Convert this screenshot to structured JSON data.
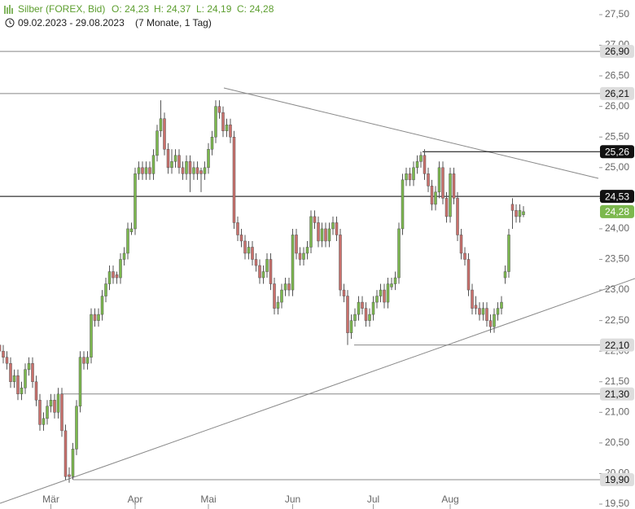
{
  "chart_data": {
    "type": "candlestick",
    "title": "Silber (FOREX, Bid)",
    "ohlc_labels": [
      "O: 24,23",
      "H: 24,37",
      "L: 24,19",
      "C: 24,28"
    ],
    "subtitle": "09.02.2023 - 29.08.2023",
    "period": "(7 Monate, 1 Tag)",
    "up_color": "#7cb84e",
    "down_color": "#c9706c",
    "ylim": [
      19.5,
      27.5
    ],
    "yticks": [
      {
        "value": 19.5,
        "label": "19,50"
      },
      {
        "value": 20,
        "label": "20,00"
      },
      {
        "value": 20.5,
        "label": "20,50"
      },
      {
        "value": 21,
        "label": "21,00"
      },
      {
        "value": 21.5,
        "label": "21,50"
      },
      {
        "value": 22,
        "label": "22,00"
      },
      {
        "value": 22.5,
        "label": "22,50"
      },
      {
        "value": 23,
        "label": "23,00"
      },
      {
        "value": 23.5,
        "label": "23,50"
      },
      {
        "value": 24,
        "label": "24,00"
      },
      {
        "value": 24.5,
        "label": "24,50"
      },
      {
        "value": 25,
        "label": "25,00"
      },
      {
        "value": 25.5,
        "label": "25,50"
      },
      {
        "value": 26,
        "label": "26,00"
      },
      {
        "value": 26.5,
        "label": "26,50"
      },
      {
        "value": 27,
        "label": "27,00"
      },
      {
        "value": 27.5,
        "label": "27,50"
      }
    ],
    "levels": [
      {
        "value": 26.9,
        "label": "26,90",
        "color": "#888888",
        "text_color": "#111111",
        "box": "#dddddd",
        "line": true
      },
      {
        "value": 26.21,
        "label": "26,21",
        "color": "#888888",
        "text_color": "#111111",
        "box": "#dddddd",
        "line": true
      },
      {
        "value": 25.26,
        "label": "25,26",
        "color": "#000000",
        "text_color": "#ffffff",
        "box": "#111111",
        "line": true
      },
      {
        "value": 24.53,
        "label": "24,53",
        "color": "#000000",
        "text_color": "#ffffff",
        "box": "#111111",
        "line": true
      },
      {
        "value": 24.28,
        "label": "24,28",
        "color": "#7cb84e",
        "text_color": "#ffffff",
        "box": "#7cb84e",
        "line": false
      },
      {
        "value": 22.1,
        "label": "22,10",
        "color": "#888888",
        "text_color": "#111111",
        "box": "#dddddd",
        "line": true
      },
      {
        "value": 21.3,
        "label": "21,30",
        "color": "#888888",
        "text_color": "#111111",
        "box": "#dddddd",
        "line": true
      },
      {
        "value": 19.9,
        "label": "19,90",
        "color": "#888888",
        "text_color": "#111111",
        "box": "#dddddd",
        "line": true
      }
    ],
    "categories": [
      null,
      null,
      null,
      null,
      null,
      null,
      null,
      null,
      null,
      null,
      null,
      null,
      null,
      null,
      "Mär",
      null,
      null,
      null,
      null,
      null,
      null,
      null,
      null,
      null,
      null,
      null,
      null,
      null,
      null,
      null,
      null,
      null,
      null,
      null,
      null,
      null,
      null,
      "Apr",
      null,
      null,
      null,
      null,
      null,
      null,
      null,
      null,
      null,
      null,
      null,
      null,
      null,
      null,
      null,
      null,
      null,
      null,
      null,
      "Mai",
      null,
      null,
      null,
      null,
      null,
      null,
      null,
      null,
      null,
      null,
      null,
      null,
      null,
      null,
      null,
      null,
      null,
      null,
      null,
      null,
      null,
      null,
      "Jun",
      null,
      null,
      null,
      null,
      null,
      null,
      null,
      null,
      null,
      null,
      null,
      null,
      null,
      null,
      null,
      null,
      null,
      null,
      null,
      null,
      null,
      "Jul",
      null,
      null,
      null,
      null,
      null,
      null,
      null,
      null,
      null,
      null,
      null,
      null,
      null,
      null,
      null,
      null,
      null,
      null,
      null,
      null,
      "Aug",
      null,
      null,
      null,
      null,
      null,
      null,
      null,
      null,
      null,
      null,
      null,
      null,
      null,
      null,
      null,
      null,
      null,
      null,
      null,
      null
    ],
    "candles": [
      [
        22.1,
        22.15,
        21.9,
        22.0
      ],
      [
        22.0,
        22.1,
        21.8,
        21.9
      ],
      [
        21.9,
        22.0,
        21.7,
        21.8
      ],
      [
        21.8,
        21.9,
        21.4,
        21.5
      ],
      [
        21.5,
        21.7,
        21.4,
        21.6
      ],
      [
        21.6,
        21.7,
        21.2,
        21.3
      ],
      [
        21.3,
        21.5,
        21.2,
        21.4
      ],
      [
        21.4,
        21.8,
        21.3,
        21.7
      ],
      [
        21.7,
        21.9,
        21.6,
        21.8
      ],
      [
        21.8,
        21.9,
        21.4,
        21.5
      ],
      [
        21.5,
        21.6,
        21.1,
        21.2
      ],
      [
        21.2,
        21.3,
        20.7,
        20.8
      ],
      [
        20.8,
        21.0,
        20.7,
        20.9
      ],
      [
        20.9,
        21.2,
        20.8,
        21.1
      ],
      [
        21.1,
        21.3,
        21.0,
        21.2
      ],
      [
        21.2,
        21.3,
        20.9,
        21.0
      ],
      [
        21.0,
        21.4,
        20.9,
        21.3
      ],
      [
        21.3,
        21.4,
        20.6,
        20.7
      ],
      [
        20.7,
        20.8,
        19.9,
        19.95
      ],
      [
        19.98,
        20.1,
        19.85,
        19.95
      ],
      [
        19.95,
        20.5,
        19.9,
        20.4
      ],
      [
        20.4,
        21.2,
        20.3,
        21.1
      ],
      [
        21.1,
        22.0,
        21.0,
        21.9
      ],
      [
        21.9,
        22.0,
        21.7,
        21.8
      ],
      [
        21.8,
        22.0,
        21.7,
        21.9
      ],
      [
        21.9,
        22.7,
        21.8,
        22.6
      ],
      [
        22.6,
        22.7,
        22.4,
        22.5
      ],
      [
        22.5,
        22.7,
        22.4,
        22.6
      ],
      [
        22.6,
        23.0,
        22.5,
        22.9
      ],
      [
        22.9,
        23.2,
        22.8,
        23.1
      ],
      [
        23.1,
        23.4,
        23.0,
        23.3
      ],
      [
        23.3,
        23.4,
        23.1,
        23.2
      ],
      [
        23.25,
        23.3,
        23.1,
        23.2
      ],
      [
        23.2,
        23.6,
        23.1,
        23.5
      ],
      [
        23.5,
        23.7,
        23.4,
        23.6
      ],
      [
        23.6,
        24.1,
        23.5,
        24.0
      ],
      [
        23.95,
        24.1,
        23.9,
        24.0
      ],
      [
        24.0,
        25.0,
        23.9,
        24.9
      ],
      [
        24.9,
        25.1,
        24.8,
        25.0
      ],
      [
        25.0,
        25.1,
        24.8,
        24.9
      ],
      [
        24.9,
        25.1,
        24.8,
        25.0
      ],
      [
        25.0,
        25.1,
        24.8,
        24.9
      ],
      [
        24.9,
        25.3,
        24.8,
        25.2
      ],
      [
        25.2,
        25.7,
        25.1,
        25.6
      ],
      [
        25.6,
        26.1,
        25.5,
        25.8
      ],
      [
        25.8,
        25.9,
        25.2,
        25.3
      ],
      [
        25.3,
        25.4,
        24.9,
        25.0
      ],
      [
        25.0,
        25.3,
        24.9,
        25.1
      ],
      [
        25.1,
        25.3,
        25.0,
        25.2
      ],
      [
        25.2,
        25.3,
        24.9,
        25.0
      ],
      [
        25.0,
        25.1,
        24.8,
        24.9
      ],
      [
        24.9,
        25.2,
        24.8,
        25.1
      ],
      [
        25.1,
        25.2,
        24.6,
        24.9
      ],
      [
        24.9,
        25.1,
        24.8,
        25.0
      ],
      [
        25.0,
        25.1,
        24.8,
        24.9
      ],
      [
        24.95,
        25.0,
        24.6,
        24.9
      ],
      [
        24.9,
        25.1,
        24.8,
        25.0
      ],
      [
        25.0,
        25.4,
        24.9,
        25.3
      ],
      [
        25.3,
        25.6,
        25.2,
        25.5
      ],
      [
        25.5,
        26.1,
        25.4,
        26.0
      ],
      [
        26.0,
        26.1,
        25.8,
        25.9
      ],
      [
        25.9,
        26.0,
        25.5,
        25.6
      ],
      [
        25.6,
        25.8,
        25.5,
        25.7
      ],
      [
        25.7,
        25.8,
        25.4,
        25.5
      ],
      [
        25.5,
        25.6,
        24.0,
        24.1
      ],
      [
        24.1,
        24.2,
        23.8,
        23.9
      ],
      [
        23.9,
        24.0,
        23.7,
        23.8
      ],
      [
        23.8,
        23.9,
        23.5,
        23.6
      ],
      [
        23.6,
        23.8,
        23.5,
        23.7
      ],
      [
        23.7,
        23.8,
        23.4,
        23.5
      ],
      [
        23.5,
        23.6,
        23.3,
        23.4
      ],
      [
        23.4,
        23.5,
        23.1,
        23.2
      ],
      [
        23.2,
        23.4,
        23.1,
        23.3
      ],
      [
        23.3,
        23.6,
        23.2,
        23.5
      ],
      [
        23.5,
        23.6,
        23.0,
        23.1
      ],
      [
        23.1,
        23.2,
        22.6,
        22.7
      ],
      [
        22.7,
        22.9,
        22.6,
        22.8
      ],
      [
        22.8,
        23.1,
        22.7,
        23.0
      ],
      [
        23.0,
        23.2,
        22.9,
        23.1
      ],
      [
        23.1,
        23.2,
        22.9,
        23.0
      ],
      [
        23.0,
        24.0,
        22.9,
        23.9
      ],
      [
        23.9,
        24.0,
        23.5,
        23.6
      ],
      [
        23.6,
        23.7,
        23.4,
        23.5
      ],
      [
        23.5,
        23.7,
        23.4,
        23.6
      ],
      [
        23.6,
        23.8,
        23.5,
        23.7
      ],
      [
        23.7,
        24.3,
        23.6,
        24.2
      ],
      [
        24.2,
        24.3,
        24.0,
        24.1
      ],
      [
        24.1,
        24.2,
        23.7,
        23.8
      ],
      [
        23.8,
        24.1,
        23.7,
        24.0
      ],
      [
        24.0,
        24.1,
        23.7,
        23.8
      ],
      [
        23.8,
        24.1,
        23.7,
        24.0
      ],
      [
        24.0,
        24.2,
        23.9,
        24.1
      ],
      [
        24.1,
        24.2,
        23.8,
        23.9
      ],
      [
        23.9,
        24.0,
        22.9,
        23.0
      ],
      [
        23.0,
        23.1,
        22.8,
        22.9
      ],
      [
        22.9,
        23.0,
        22.1,
        22.3
      ],
      [
        22.3,
        22.6,
        22.2,
        22.5
      ],
      [
        22.5,
        22.7,
        22.4,
        22.6
      ],
      [
        22.6,
        22.9,
        22.5,
        22.8
      ],
      [
        22.8,
        22.9,
        22.6,
        22.7
      ],
      [
        22.7,
        22.8,
        22.4,
        22.5
      ],
      [
        22.5,
        22.7,
        22.4,
        22.6
      ],
      [
        22.6,
        22.9,
        22.5,
        22.8
      ],
      [
        22.8,
        23.0,
        22.7,
        22.9
      ],
      [
        22.9,
        23.1,
        22.8,
        23.0
      ],
      [
        23.0,
        23.1,
        22.7,
        22.8
      ],
      [
        22.8,
        23.2,
        22.7,
        23.1
      ],
      [
        23.05,
        23.2,
        23.0,
        23.1
      ],
      [
        23.1,
        23.3,
        23.0,
        23.2
      ],
      [
        23.2,
        24.1,
        23.1,
        24.0
      ],
      [
        24.0,
        24.9,
        23.9,
        24.8
      ],
      [
        24.8,
        25.0,
        24.7,
        24.9
      ],
      [
        24.9,
        25.0,
        24.7,
        24.8
      ],
      [
        24.8,
        25.1,
        24.7,
        25.0
      ],
      [
        25.0,
        25.2,
        24.9,
        25.1
      ],
      [
        25.1,
        25.26,
        25.0,
        25.2
      ],
      [
        25.2,
        25.3,
        24.8,
        24.9
      ],
      [
        24.9,
        25.0,
        24.6,
        24.7
      ],
      [
        24.7,
        24.8,
        24.3,
        24.4
      ],
      [
        24.4,
        24.7,
        24.3,
        24.6
      ],
      [
        24.6,
        25.1,
        24.5,
        25.0
      ],
      [
        25.0,
        25.1,
        24.4,
        24.5
      ],
      [
        24.5,
        24.6,
        24.1,
        24.2
      ],
      [
        24.2,
        25.0,
        24.1,
        24.9
      ],
      [
        24.9,
        25.0,
        24.4,
        24.5
      ],
      [
        24.5,
        24.6,
        23.8,
        23.9
      ],
      [
        23.9,
        24.0,
        23.5,
        23.6
      ],
      [
        23.6,
        23.7,
        23.4,
        23.5
      ],
      [
        23.5,
        23.6,
        22.9,
        23.0
      ],
      [
        23.0,
        23.1,
        22.6,
        22.7
      ],
      [
        22.75,
        22.9,
        22.6,
        22.7
      ],
      [
        22.7,
        22.8,
        22.5,
        22.6
      ],
      [
        22.6,
        22.8,
        22.5,
        22.7
      ],
      [
        22.7,
        22.8,
        22.4,
        22.5
      ],
      [
        22.5,
        22.6,
        22.3,
        22.4
      ],
      [
        22.4,
        22.7,
        22.3,
        22.6
      ],
      [
        22.6,
        22.8,
        22.5,
        22.7
      ],
      [
        22.7,
        22.9,
        22.6,
        22.8
      ],
      [
        23.2,
        23.4,
        23.1,
        23.3
      ],
      [
        23.3,
        24.0,
        23.2,
        23.9
      ],
      [
        24.4,
        24.5,
        24.0,
        24.3
      ],
      [
        24.3,
        24.4,
        24.1,
        24.2
      ],
      [
        24.2,
        24.4,
        24.1,
        24.3
      ],
      [
        24.23,
        24.37,
        24.19,
        24.28
      ]
    ]
  }
}
